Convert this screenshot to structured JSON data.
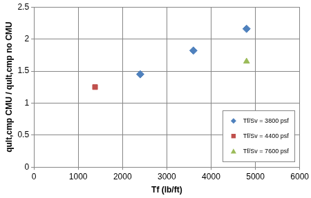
{
  "chart_data": {
    "type": "scatter",
    "x_label": "Tf (lb/ft)",
    "y_label": "qult,cmp CMU / qult,cmp no CMU",
    "xlim": [
      0,
      6000
    ],
    "xticks": [
      0,
      1000,
      2000,
      3000,
      4000,
      5000,
      6000
    ],
    "ylim": [
      0,
      2.5
    ],
    "yticks": [
      0,
      0.5,
      1,
      1.5,
      2,
      2.5
    ],
    "grid": true,
    "legend": "lower right",
    "series": [
      {
        "name": "Tf/Sv = 3800 psf",
        "color": "#4f81bd",
        "marker": "diamond",
        "x": [
          2400,
          3600,
          4800
        ],
        "values": [
          1.45,
          1.82,
          2.16
        ]
      },
      {
        "name": "Tf/Sv = 4400 psf",
        "color": "#c0504d",
        "marker": "square",
        "x": [
          1380
        ],
        "values": [
          1.25
        ]
      },
      {
        "name": "Tf/Sv = 7600 psf",
        "color": "#9bbb59",
        "marker": "triangle",
        "x": [
          4800
        ],
        "values": [
          1.65
        ]
      }
    ]
  }
}
